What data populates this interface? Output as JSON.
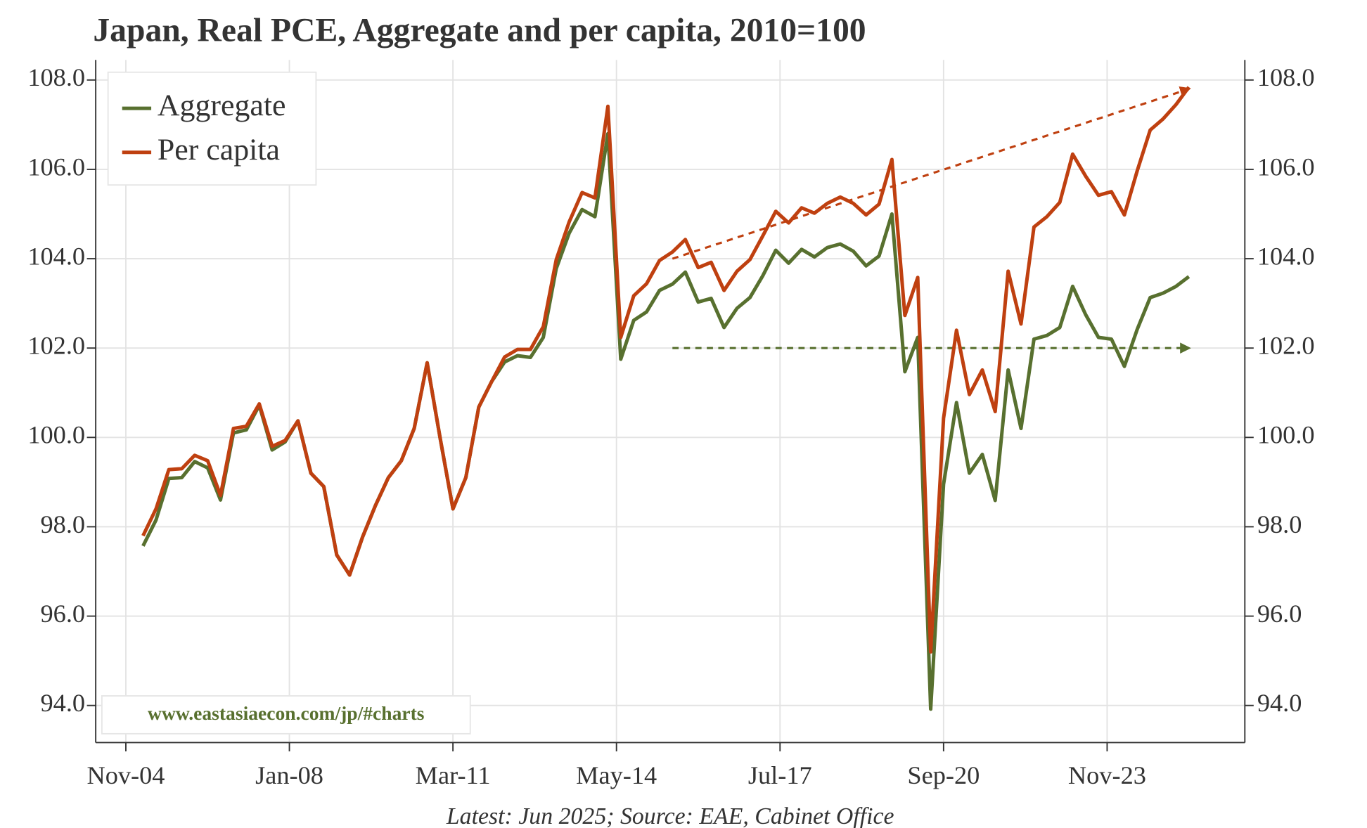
{
  "chart_data": {
    "type": "line",
    "title": "Japan, Real PCE, Aggregate and per capita, 2010=100",
    "footnote": "Latest: Jun 2025; Source: EAE, Cabinet Office",
    "watermark": "www.eastasiaecon.com/jp/#charts",
    "x": [
      "Mar-05",
      "Jun-05",
      "Sep-05",
      "Dec-05",
      "Mar-06",
      "Jun-06",
      "Sep-06",
      "Dec-06",
      "Mar-07",
      "Jun-07",
      "Sep-07",
      "Dec-07",
      "Mar-08",
      "Jun-08",
      "Sep-08",
      "Dec-08",
      "Mar-09",
      "Jun-09",
      "Sep-09",
      "Dec-09",
      "Mar-10",
      "Jun-10",
      "Sep-10",
      "Dec-10",
      "Mar-11",
      "Jun-11",
      "Sep-11",
      "Dec-11",
      "Mar-12",
      "Jun-12",
      "Sep-12",
      "Dec-12",
      "Mar-13",
      "Jun-13",
      "Sep-13",
      "Dec-13",
      "Mar-14",
      "Jun-14",
      "Sep-14",
      "Dec-14",
      "Mar-15",
      "Jun-15",
      "Sep-15",
      "Dec-15",
      "Mar-16",
      "Jun-16",
      "Sep-16",
      "Dec-16",
      "Mar-17",
      "Jun-17",
      "Sep-17",
      "Dec-17",
      "Mar-18",
      "Jun-18",
      "Sep-18",
      "Dec-18",
      "Mar-19",
      "Jun-19",
      "Sep-19",
      "Dec-19",
      "Mar-20",
      "Jun-20",
      "Sep-20",
      "Dec-20",
      "Mar-21",
      "Jun-21",
      "Sep-21",
      "Dec-21",
      "Mar-22",
      "Jun-22",
      "Sep-22",
      "Dec-22",
      "Mar-23",
      "Jun-23",
      "Sep-23",
      "Dec-23",
      "Mar-24",
      "Jun-24",
      "Sep-24",
      "Dec-24",
      "Mar-25",
      "Jun-25"
    ],
    "series": [
      {
        "name": "Aggregate",
        "color": "#58702f",
        "values": [
          97.57,
          98.15,
          99.08,
          99.1,
          99.46,
          99.32,
          98.6,
          100.1,
          100.17,
          100.72,
          99.72,
          99.9,
          100.37,
          99.2,
          98.9,
          97.37,
          96.92,
          97.77,
          98.48,
          99.1,
          99.48,
          100.2,
          101.67,
          100.0,
          98.4,
          99.1,
          100.68,
          101.25,
          101.69,
          101.83,
          101.79,
          102.24,
          103.78,
          104.57,
          105.1,
          104.94,
          106.8,
          101.75,
          102.62,
          102.81,
          103.29,
          103.43,
          103.7,
          103.03,
          103.11,
          102.46,
          102.89,
          103.13,
          103.62,
          104.19,
          103.9,
          104.21,
          104.04,
          104.25,
          104.33,
          104.17,
          103.84,
          104.06,
          105.0,
          101.47,
          102.24,
          93.92,
          98.95,
          100.78,
          99.2,
          99.62,
          98.59,
          101.51,
          100.2,
          102.2,
          102.28,
          102.46,
          103.38,
          102.75,
          102.24,
          102.2,
          101.59,
          102.42,
          103.13,
          103.23,
          103.38,
          103.6
        ]
      },
      {
        "name": "Per capita",
        "color": "#bf4010",
        "values": [
          97.8,
          98.4,
          99.28,
          99.3,
          99.6,
          99.48,
          98.7,
          100.2,
          100.25,
          100.75,
          99.8,
          99.93,
          100.37,
          99.2,
          98.9,
          97.37,
          96.92,
          97.77,
          98.48,
          99.1,
          99.48,
          100.2,
          101.67,
          100.0,
          98.4,
          99.1,
          100.68,
          101.25,
          101.8,
          101.97,
          101.97,
          102.48,
          103.98,
          104.82,
          105.48,
          105.36,
          107.41,
          102.24,
          103.17,
          103.44,
          103.96,
          104.15,
          104.43,
          103.8,
          103.92,
          103.29,
          103.72,
          103.98,
          104.51,
          105.06,
          104.8,
          105.14,
          105.02,
          105.24,
          105.38,
          105.24,
          104.98,
          105.22,
          106.22,
          102.73,
          103.58,
          95.2,
          100.43,
          102.4,
          100.96,
          101.51,
          100.58,
          103.72,
          102.54,
          104.71,
          104.94,
          105.26,
          106.34,
          105.85,
          105.42,
          105.5,
          104.98,
          105.97,
          106.88,
          107.13,
          107.45,
          107.84
        ]
      }
    ],
    "trend_arrows": [
      {
        "color": "#bf4010",
        "x": [
          "Jun-15",
          "Jun-25"
        ],
        "y": [
          104.0,
          107.8
        ]
      },
      {
        "color": "#58702f",
        "x": [
          "Jun-15",
          "Jun-25"
        ],
        "y": [
          102.0,
          102.0
        ]
      }
    ],
    "xlim": [
      "Apr-04",
      "Jul-26"
    ],
    "xticks": [
      "Nov-04",
      "Jan-08",
      "Mar-11",
      "May-14",
      "Jul-17",
      "Sep-20",
      "Nov-23"
    ],
    "ylim": [
      93.17,
      108.45
    ],
    "yticks": [
      {
        "value": 94,
        "label": "94.0"
      },
      {
        "value": 96,
        "label": "96.0"
      },
      {
        "value": 98,
        "label": "98.0"
      },
      {
        "value": 100,
        "label": "100.0"
      },
      {
        "value": 102,
        "label": "102.0"
      },
      {
        "value": 104,
        "label": "104.0"
      },
      {
        "value": 106,
        "label": "106.0"
      },
      {
        "value": 108,
        "label": "108.0"
      }
    ],
    "y2lim": [
      93.17,
      108.45
    ],
    "y2ticks": [
      {
        "value": 94,
        "label": "94.0"
      },
      {
        "value": 96,
        "label": "96.0"
      },
      {
        "value": 98,
        "label": "98.0"
      },
      {
        "value": 100,
        "label": "100.0"
      },
      {
        "value": 102,
        "label": "102.0"
      },
      {
        "value": 104,
        "label": "104.0"
      },
      {
        "value": 106,
        "label": "106.0"
      },
      {
        "value": 108,
        "label": "108.0"
      }
    ],
    "grid": true,
    "legend": "upper left"
  }
}
